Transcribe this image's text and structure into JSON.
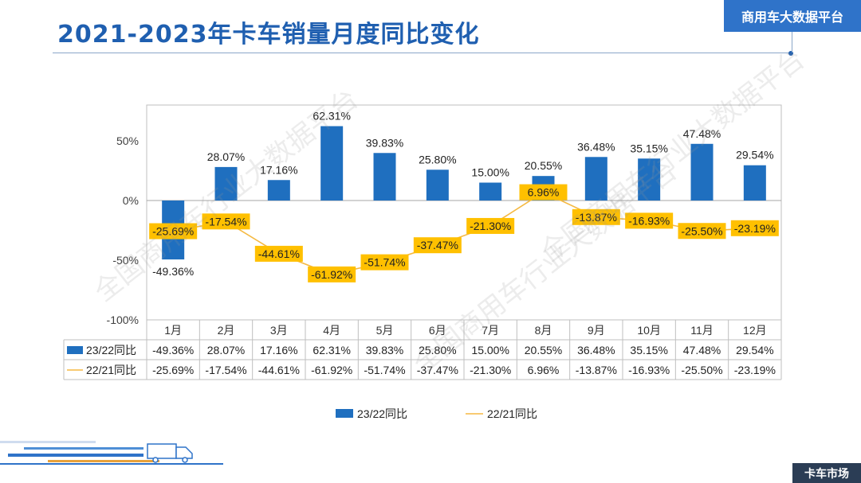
{
  "page": {
    "title": "2021-2023年卡车销量月度同比变化",
    "brand": "商用车大数据平台",
    "footer": "卡车市场",
    "watermark": "全国商用车行业大数据平台"
  },
  "colors": {
    "bar": "#1f6fbf",
    "line": "#f5b942",
    "label_bg": "#ffc000",
    "title": "#1f5fb0",
    "grid": "#bfbfbf"
  },
  "chart_data": {
    "type": "bar",
    "title": "",
    "categories": [
      "1月",
      "2月",
      "3月",
      "4月",
      "5月",
      "6月",
      "7月",
      "8月",
      "9月",
      "10月",
      "11月",
      "12月"
    ],
    "y_ticks": [
      "50%",
      "0%",
      "-50%",
      "-100%"
    ],
    "ylim": [
      -100,
      80
    ],
    "series": [
      {
        "name": "23/22同比",
        "kind": "bar",
        "values": [
          -49.36,
          28.07,
          17.16,
          62.31,
          39.83,
          25.8,
          15.0,
          20.55,
          36.48,
          35.15,
          47.48,
          29.54
        ],
        "labels": [
          "-49.36%",
          "28.07%",
          "17.16%",
          "62.31%",
          "39.83%",
          "25.80%",
          "15.00%",
          "20.55%",
          "36.48%",
          "35.15%",
          "47.48%",
          "29.54%"
        ]
      },
      {
        "name": "22/21同比",
        "kind": "line",
        "values": [
          -25.69,
          -17.54,
          -44.61,
          -61.92,
          -51.74,
          -37.47,
          -21.3,
          6.96,
          -13.87,
          -16.93,
          -25.5,
          -23.19
        ],
        "labels": [
          "-25.69%",
          "-17.54%",
          "-44.61%",
          "-61.92%",
          "-51.74%",
          "-37.47%",
          "-21.30%",
          "6.96%",
          "-13.87%",
          "-16.93%",
          "-25.50%",
          "-23.19%"
        ]
      }
    ],
    "legend": [
      "23/22同比",
      "22/21同比"
    ],
    "legend_position": "bottom",
    "data_table": true
  }
}
